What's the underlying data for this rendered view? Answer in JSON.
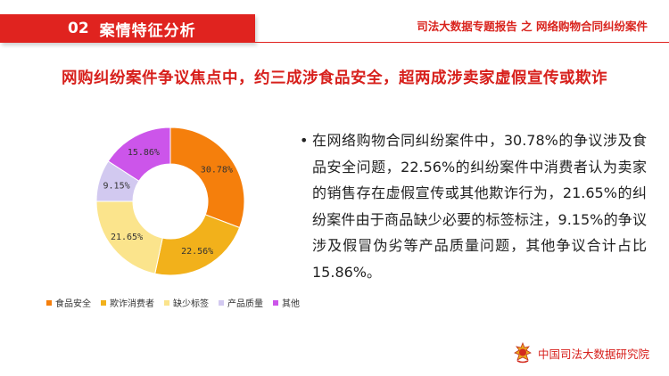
{
  "header": {
    "section_number": "02",
    "section_title": "案情特征分析",
    "report_title": "司法大数据专题报告 之 网络购物合同纠纷案件"
  },
  "headline": "网购纠纷案件争议焦点中，约三成涉食品安全，超两成涉卖家虚假宣传或欺诈",
  "description": {
    "bullet": "•",
    "text": "在网络购物合同纠纷案件中，30.78%的争议涉及食品安全问题，22.56%的纠纷案件中消费者认为卖家的销售存在虚假宣传或其他欺诈行为，21.65%的纠纷案件由于商品缺少必要的标签标注，9.15%的争议涉及假冒伪劣等产品质量问题，其他争议合计占比15.86%。"
  },
  "footer": {
    "org_name": "中国司法大数据研究院",
    "emblem": "court-emblem-icon"
  },
  "chart_data": {
    "type": "pie",
    "donut": true,
    "categories": [
      "食品安全",
      "欺诈消费者",
      "缺少标签",
      "产品质量",
      "其他"
    ],
    "values": [
      30.78,
      22.56,
      21.65,
      9.15,
      15.86
    ],
    "data_labels": [
      "30.78%",
      "22.56%",
      "21.65%",
      "9.15%",
      "15.86%"
    ],
    "colors": [
      "#f57f0c",
      "#f2b11b",
      "#fbe48c",
      "#d2c9f0",
      "#cc55ea"
    ],
    "legend_position": "bottom",
    "title": ""
  }
}
